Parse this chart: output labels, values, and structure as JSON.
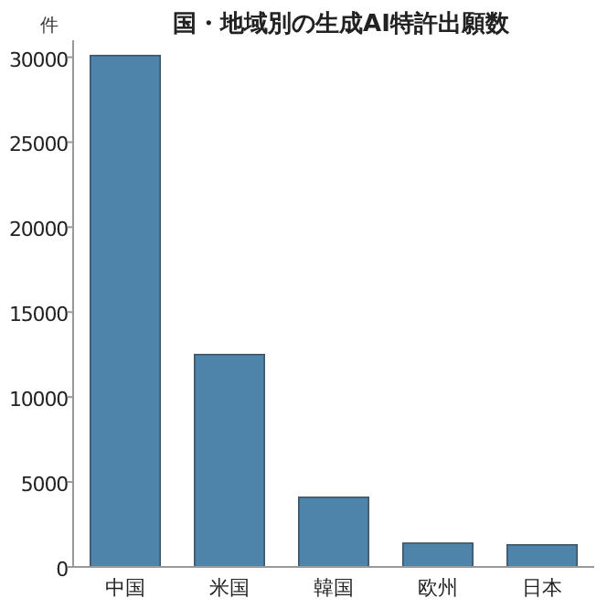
{
  "chart_data": {
    "type": "bar",
    "title": "国・地域別の生成AI特許出願数",
    "ylabel": "件",
    "categories": [
      "中国",
      "米国",
      "韓国",
      "欧州",
      "日本"
    ],
    "values": [
      30100,
      12500,
      4100,
      1400,
      1300
    ],
    "color": "#4e84aa",
    "ylim": [
      0,
      31000
    ],
    "yticks": [
      0,
      5000,
      10000,
      15000,
      20000,
      25000,
      30000
    ],
    "grid": false
  }
}
